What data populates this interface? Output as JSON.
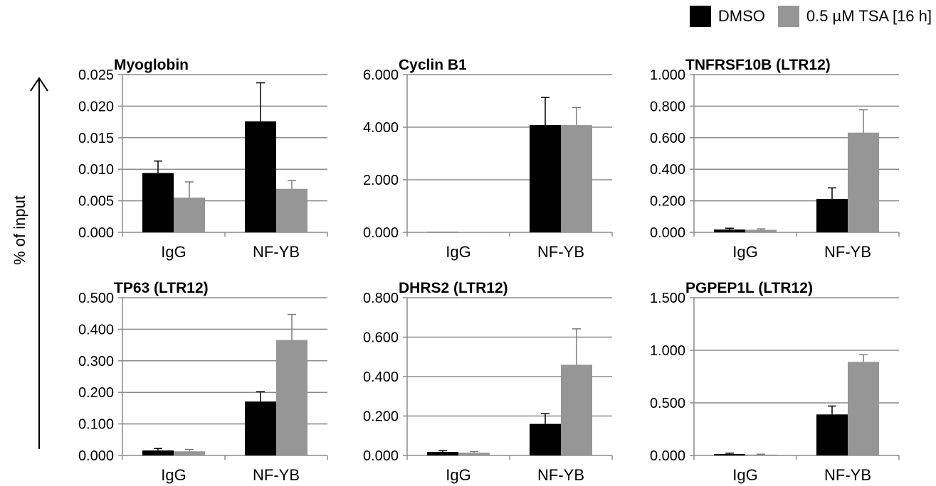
{
  "legend": {
    "items": [
      {
        "label": "DMSO",
        "color": "#000000"
      },
      {
        "label": "0.5 µM TSA [16 h]",
        "color": "#969696"
      }
    ]
  },
  "ylabel": "% of input",
  "chart_data": [
    {
      "type": "bar",
      "title": "Myoglobin",
      "categories": [
        "IgG",
        "NF-YB"
      ],
      "ylim": [
        0,
        0.025
      ],
      "yticks": [
        "0.000",
        "0.005",
        "0.010",
        "0.015",
        "0.020",
        "0.025"
      ],
      "series": [
        {
          "name": "DMSO",
          "values": [
            0.0094,
            0.0176
          ],
          "errors": [
            0.0019,
            0.0061
          ]
        },
        {
          "name": "0.5 µM TSA [16 h]",
          "values": [
            0.0055,
            0.0069
          ],
          "errors": [
            0.0025,
            0.0013
          ]
        }
      ]
    },
    {
      "type": "bar",
      "title": "Cyclin B1",
      "categories": [
        "IgG",
        "NF-YB"
      ],
      "ylim": [
        0,
        6
      ],
      "yticks": [
        "0.000",
        "2.000",
        "4.000",
        "6.000"
      ],
      "series": [
        {
          "name": "DMSO",
          "values": [
            0.01,
            4.08
          ],
          "errors": [
            0.0,
            1.05
          ]
        },
        {
          "name": "0.5 µM TSA [16 h]",
          "values": [
            0.01,
            4.08
          ],
          "errors": [
            0.0,
            0.67
          ]
        }
      ]
    },
    {
      "type": "bar",
      "title": "TNFRSF10B (LTR12)",
      "categories": [
        "IgG",
        "NF-YB"
      ],
      "ylim": [
        0,
        1
      ],
      "yticks": [
        "0.000",
        "0.200",
        "0.400",
        "0.600",
        "0.800",
        "1.000"
      ],
      "series": [
        {
          "name": "DMSO",
          "values": [
            0.018,
            0.212
          ],
          "errors": [
            0.008,
            0.07
          ]
        },
        {
          "name": "0.5 µM TSA [16 h]",
          "values": [
            0.016,
            0.632
          ],
          "errors": [
            0.006,
            0.145
          ]
        }
      ]
    },
    {
      "type": "bar",
      "title": "TP63 (LTR12)",
      "categories": [
        "IgG",
        "NF-YB"
      ],
      "ylim": [
        0,
        0.5
      ],
      "yticks": [
        "0.000",
        "0.100",
        "0.200",
        "0.300",
        "0.400",
        "0.500"
      ],
      "series": [
        {
          "name": "DMSO",
          "values": [
            0.016,
            0.171
          ],
          "errors": [
            0.006,
            0.031
          ]
        },
        {
          "name": "0.5 µM TSA [16 h]",
          "values": [
            0.013,
            0.366
          ],
          "errors": [
            0.006,
            0.081
          ]
        }
      ]
    },
    {
      "type": "bar",
      "title": "DHRS2 (LTR12)",
      "categories": [
        "IgG",
        "NF-YB"
      ],
      "ylim": [
        0,
        0.8
      ],
      "yticks": [
        "0.000",
        "0.200",
        "0.400",
        "0.600",
        "0.800"
      ],
      "series": [
        {
          "name": "DMSO",
          "values": [
            0.018,
            0.16
          ],
          "errors": [
            0.006,
            0.052
          ]
        },
        {
          "name": "0.5 µM TSA [16 h]",
          "values": [
            0.014,
            0.46
          ],
          "errors": [
            0.006,
            0.182
          ]
        }
      ]
    },
    {
      "type": "bar",
      "title": "PGPEP1L (LTR12)",
      "categories": [
        "IgG",
        "NF-YB"
      ],
      "ylim": [
        0,
        1.5
      ],
      "yticks": [
        "0.000",
        "0.500",
        "1.000",
        "1.500"
      ],
      "series": [
        {
          "name": "DMSO",
          "values": [
            0.014,
            0.39
          ],
          "errors": [
            0.008,
            0.08
          ]
        },
        {
          "name": "0.5 µM TSA [16 h]",
          "values": [
            0.008,
            0.89
          ],
          "errors": [
            0.004,
            0.068
          ]
        }
      ]
    }
  ]
}
